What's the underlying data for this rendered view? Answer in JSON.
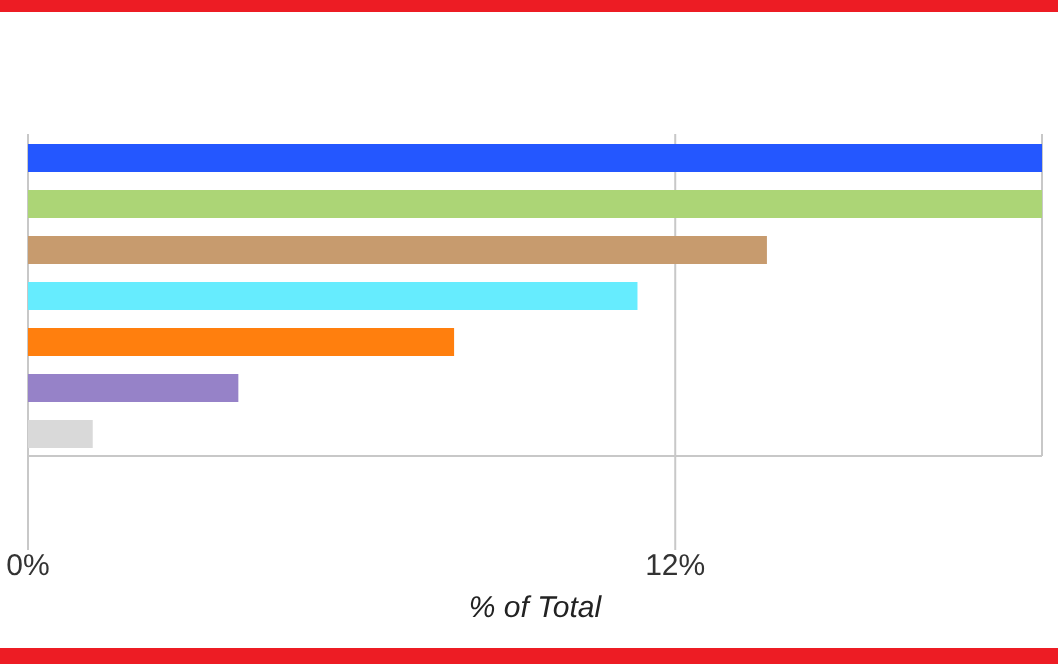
{
  "chart_data": {
    "type": "bar",
    "orientation": "horizontal",
    "xlabel": "% of Total",
    "categories": [
      null,
      null,
      null,
      null,
      null,
      null,
      null
    ],
    "values": [
      18.8,
      18.8,
      13.7,
      11.3,
      7.9,
      3.9,
      1.2
    ],
    "colors": [
      "#2457ff",
      "#acd576",
      "#c79b6e",
      "#66ecfe",
      "#ff7f0e",
      "#9682c8",
      "#d9d9d9"
    ],
    "xlim": [
      0,
      18.8
    ],
    "xticks": [
      {
        "value": 0,
        "label": "0%"
      },
      {
        "value": 12,
        "label": "12%"
      }
    ],
    "grid": "x",
    "tick_labels": "x"
  }
}
